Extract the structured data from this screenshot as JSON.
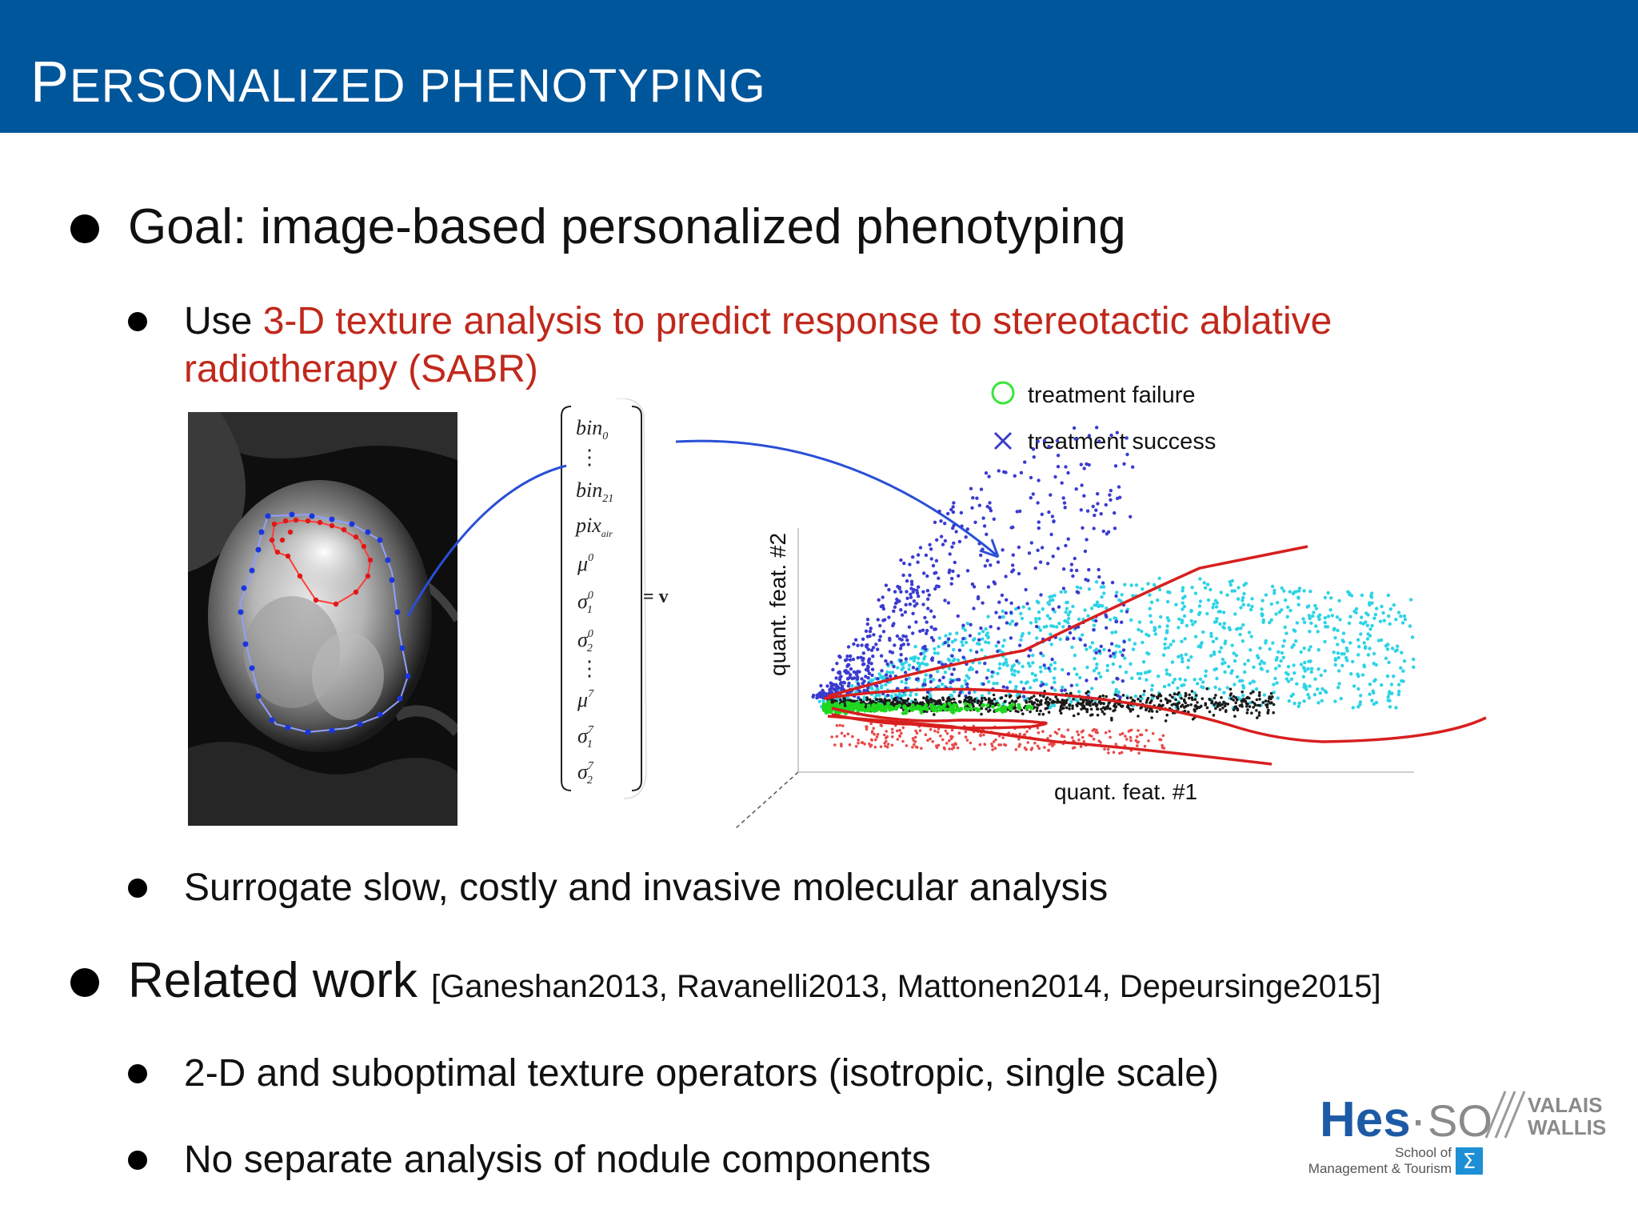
{
  "slide": {
    "title_first": "P",
    "title_rest": "ERSONALIZED PHENOTYPING"
  },
  "bullets": {
    "goal": "Goal: image-based personalized phenotyping",
    "use_prefix": "Use ",
    "use_red_line1": "3-D texture analysis to predict response to stereotactic ablative",
    "use_red_line2": "radiotherapy (SABR)",
    "surrogate": "Surrogate slow, costly and invasive molecular analysis",
    "related": "Related work",
    "related_cite": "[Ganeshan2013, Ravanelli2013, Mattonen2014, Depeursinge2015]",
    "two_d": "2-D and suboptimal texture operators (isotropic, single scale)",
    "no_separate": "No separate analysis of nodule components"
  },
  "feature_vector": {
    "rows": [
      "bin",
      "⋮",
      "bin",
      "pix",
      "μ",
      "σ",
      "σ",
      "⋮",
      "μ",
      "σ",
      "σ"
    ],
    "subscripts": [
      "0",
      "",
      "21",
      "air",
      "",
      "1",
      "2",
      "",
      "",
      "1",
      "2"
    ],
    "superscripts": [
      "",
      "",
      "",
      "",
      "0",
      "0",
      "0",
      "",
      "7",
      "7",
      "7"
    ],
    "equals": "= v"
  },
  "scatter": {
    "legend_failure": "treatment failure",
    "legend_success": "treatment success",
    "xlabel": "quant. feat. #1",
    "ylabel": "quant. feat. #2"
  },
  "logo": {
    "hes": "Hes",
    "dot": "·",
    "so": "SO",
    "valais": "VALAIS",
    "wallis": "WALLIS",
    "school": "School of",
    "mgmt": "Management & Tourism",
    "sigma": "Σ"
  },
  "colors": {
    "title_bar": "#00569b",
    "accent_red": "#c0281c",
    "arrow_blue": "#2a4fd6",
    "success_blue": "#3b3bd0",
    "cyan": "#2ed3e6",
    "green": "#1fd81f",
    "contour_red": "#d81f1f"
  }
}
